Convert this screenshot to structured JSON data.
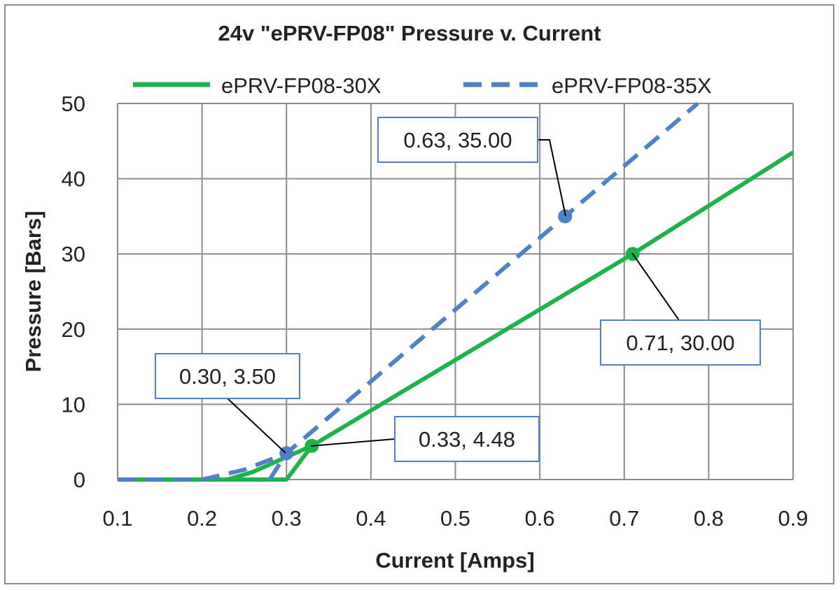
{
  "chart_data": {
    "type": "line",
    "title": "24v \"ePRV-FP08\" Pressure v. Current",
    "xlabel": "Current [Amps]",
    "ylabel": "Pressure [Bars]",
    "xlim": [
      0.1,
      0.9
    ],
    "ylim": [
      0,
      50
    ],
    "xticks": [
      "0.1",
      "0.2",
      "0.3",
      "0.4",
      "0.5",
      "0.6",
      "0.7",
      "0.8",
      "0.9"
    ],
    "yticks": [
      "0",
      "10",
      "20",
      "30",
      "40",
      "50"
    ],
    "grid": true,
    "legend_position": "top",
    "series": [
      {
        "name": "ePRV-FP08-30X",
        "color": "#1db34a",
        "style": "solid",
        "segments": [
          [
            [
              0.1,
              0
            ],
            [
              0.3,
              0
            ],
            [
              0.33,
              4.48
            ],
            [
              0.57,
              20.6
            ],
            [
              0.71,
              30.0
            ],
            [
              0.9,
              43.5
            ]
          ],
          [
            [
              0.23,
              0
            ],
            [
              0.26,
              1.0
            ],
            [
              0.3,
              3.0
            ],
            [
              0.33,
              4.48
            ]
          ]
        ],
        "markers": [
          [
            0.33,
            4.48
          ],
          [
            0.71,
            30.0
          ]
        ]
      },
      {
        "name": "ePRV-FP08-35X",
        "color": "#4f81c7",
        "style": "dashed",
        "segments": [
          [
            [
              0.1,
              0
            ],
            [
              0.2,
              0
            ],
            [
              0.25,
              1.3
            ],
            [
              0.3,
              3.5
            ],
            [
              0.63,
              35.0
            ],
            [
              0.787,
              50
            ]
          ],
          [
            [
              0.28,
              0
            ],
            [
              0.3,
              3.5
            ]
          ]
        ],
        "markers": [
          [
            0.3,
            3.5
          ],
          [
            0.63,
            35.0
          ]
        ]
      }
    ],
    "annotations": [
      {
        "text": "0.63, 35.00",
        "x": 0.63,
        "y": 35.0
      },
      {
        "text": "0.71, 30.00",
        "x": 0.71,
        "y": 30.0
      },
      {
        "text": "0.30, 3.50",
        "x": 0.3,
        "y": 3.5
      },
      {
        "text": "0.33, 4.48",
        "x": 0.33,
        "y": 4.48
      }
    ]
  }
}
